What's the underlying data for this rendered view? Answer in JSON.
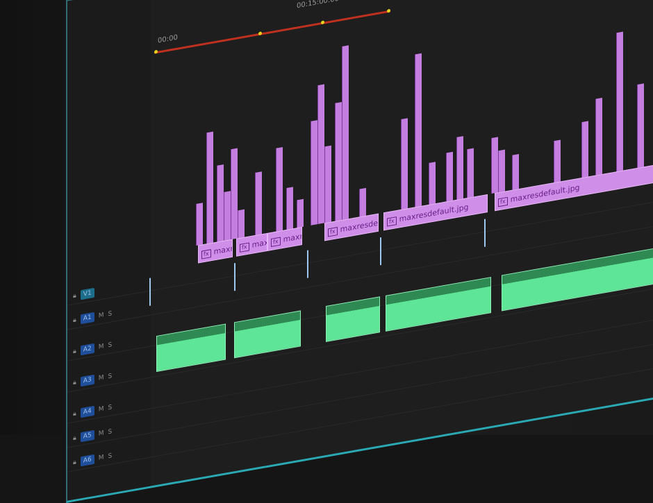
{
  "timeline": {
    "timecode_start": "00:00",
    "timecode_mark": "00:15:00:00",
    "video_clips": [
      {
        "label": "maxr"
      },
      {
        "label": "maxi"
      },
      {
        "label": "maxre"
      },
      {
        "label": "maxresde"
      },
      {
        "label": "maxresdefault.jpg"
      },
      {
        "label": "maxresdefault.jpg"
      }
    ],
    "fx_badge": "fx",
    "tracks": [
      {
        "name": "V1",
        "m": "",
        "s": ""
      },
      {
        "name": "A1",
        "m": "M",
        "s": "S"
      },
      {
        "name": "A2",
        "m": "M",
        "s": "S"
      },
      {
        "name": "A3",
        "m": "M",
        "s": "S"
      },
      {
        "name": "A4",
        "m": "M",
        "s": "S"
      },
      {
        "name": "A5",
        "m": "M",
        "s": "S"
      },
      {
        "name": "A6",
        "m": "M",
        "s": "S"
      }
    ],
    "colors": {
      "video_clip": "#cf8ee8",
      "audio_clip": "#5fe598",
      "playhead_range": "#c0301f",
      "track_target": "#1f4f9a"
    }
  }
}
